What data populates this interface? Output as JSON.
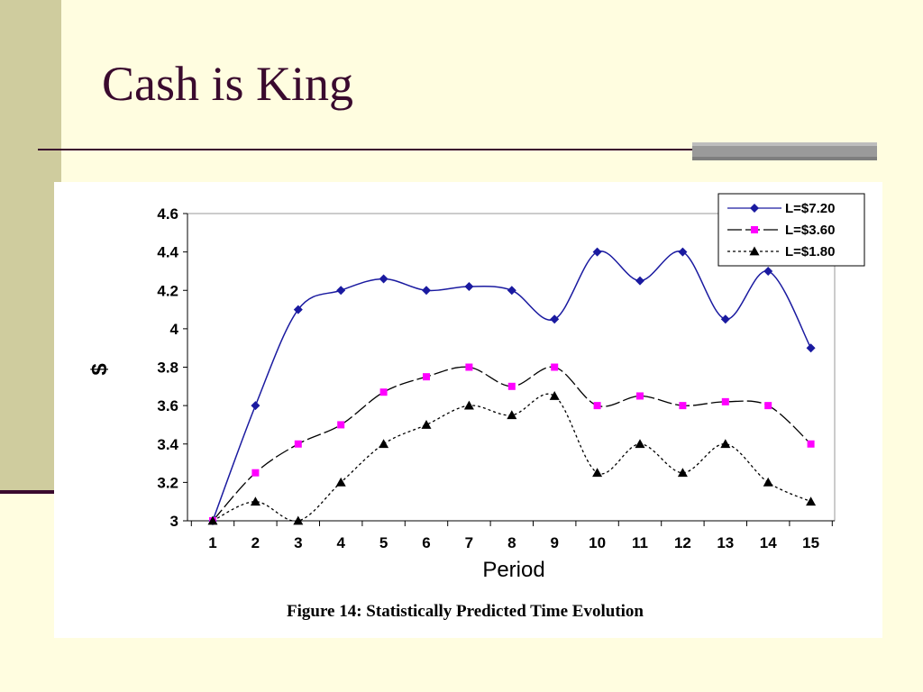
{
  "slide": {
    "title": "Cash is King"
  },
  "colors": {
    "background": "#fffde0",
    "side_band": "#cfcc9e",
    "title_text": "#3a0a2e",
    "rule": "#3a0a2e",
    "accent_bar": "#9a9a9a"
  },
  "chart_data": {
    "type": "line",
    "x": [
      1,
      2,
      3,
      4,
      5,
      6,
      7,
      8,
      9,
      10,
      11,
      12,
      13,
      14,
      15
    ],
    "x_tick_labels": [
      "1",
      "2",
      "3",
      "4",
      "5",
      "6",
      "7",
      "8",
      "9",
      "10",
      "11",
      "12",
      "13",
      "14",
      "15"
    ],
    "y_tick_labels": [
      "3",
      "3.2",
      "3.4",
      "3.6",
      "3.8",
      "4",
      "4.2",
      "4.4",
      "4.6"
    ],
    "xlabel": "Period",
    "ylabel": "$",
    "ylim": [
      3,
      4.6
    ],
    "grid": false,
    "legend_position": "top-right",
    "caption": "Figure 14: Statistically Predicted Time Evolution",
    "series": [
      {
        "name": "L=$7.20",
        "color": "#1a1aa0",
        "marker": "diamond",
        "line_style": "solid",
        "values": [
          3.0,
          3.6,
          4.1,
          4.2,
          4.26,
          4.2,
          4.22,
          4.2,
          4.05,
          4.4,
          4.25,
          4.4,
          4.05,
          4.3,
          3.9
        ]
      },
      {
        "name": "L=$3.60",
        "color": "#ff00ff",
        "line_color": "#000000",
        "marker": "square",
        "line_style": "long-dash",
        "values": [
          3.0,
          3.25,
          3.4,
          3.5,
          3.67,
          3.75,
          3.8,
          3.7,
          3.8,
          3.6,
          3.65,
          3.6,
          3.62,
          3.6,
          3.4
        ]
      },
      {
        "name": "L=$1.80",
        "color": "#000000",
        "marker": "triangle",
        "line_style": "dotted",
        "values": [
          3.0,
          3.1,
          3.0,
          3.2,
          3.4,
          3.5,
          3.6,
          3.55,
          3.65,
          3.25,
          3.4,
          3.25,
          3.4,
          3.2,
          3.1
        ]
      }
    ]
  }
}
